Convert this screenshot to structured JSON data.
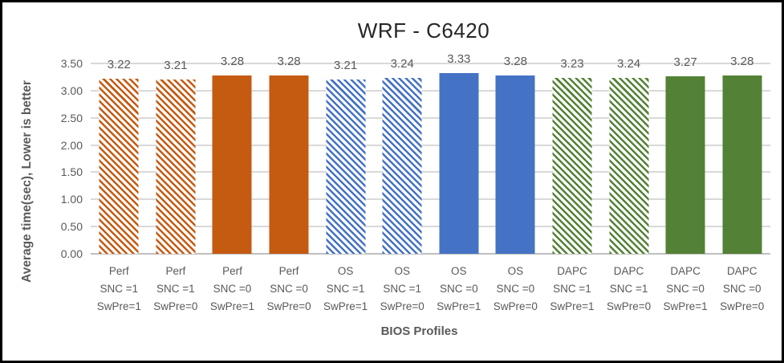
{
  "chart_data": {
    "type": "bar",
    "title": "WRF - C6420",
    "xlabel": "BIOS Profiles",
    "ylabel": "Average time(sec), Lower is better",
    "ylim": [
      0,
      3.5
    ],
    "grid": true,
    "legend_position": "none",
    "yticks": [
      {
        "v": 3.5,
        "label": "3.50"
      },
      {
        "v": 3.0,
        "label": "3.00"
      },
      {
        "v": 2.5,
        "label": "2.50"
      },
      {
        "v": 2.0,
        "label": "2.00"
      },
      {
        "v": 1.5,
        "label": "1.50"
      },
      {
        "v": 1.0,
        "label": "1.00"
      },
      {
        "v": 0.5,
        "label": "0.50"
      },
      {
        "v": 0.0,
        "label": "0.00"
      }
    ],
    "categories": [
      [
        "Perf",
        "SNC =1",
        "SwPre=1"
      ],
      [
        "Perf",
        "SNC =1",
        "SwPre=0"
      ],
      [
        "Perf",
        "SNC =0",
        "SwPre=1"
      ],
      [
        "Perf",
        "SNC =0",
        "SwPre=0"
      ],
      [
        "OS",
        "SNC =1",
        "SwPre=1"
      ],
      [
        "OS",
        "SNC =1",
        "SwPre=0"
      ],
      [
        "OS",
        "SNC =0",
        "SwPre=1"
      ],
      [
        "OS",
        "SNC =0",
        "SwPre=0"
      ],
      [
        "DAPC",
        "SNC =1",
        "SwPre=1"
      ],
      [
        "DAPC",
        "SNC =1",
        "SwPre=0"
      ],
      [
        "DAPC",
        "SNC =0",
        "SwPre=1"
      ],
      [
        "DAPC",
        "SNC =0",
        "SwPre=0"
      ]
    ],
    "values": [
      3.22,
      3.21,
      3.28,
      3.28,
      3.21,
      3.24,
      3.33,
      3.28,
      3.23,
      3.24,
      3.27,
      3.28
    ],
    "value_labels": [
      "3.22",
      "3.21",
      "3.28",
      "3.28",
      "3.21",
      "3.24",
      "3.33",
      "3.28",
      "3.23",
      "3.24",
      "3.27",
      "3.28"
    ],
    "styles": [
      {
        "color": "#C55A11",
        "fill": "hatch"
      },
      {
        "color": "#C55A11",
        "fill": "hatch"
      },
      {
        "color": "#C55A11",
        "fill": "solid"
      },
      {
        "color": "#C55A11",
        "fill": "solid"
      },
      {
        "color": "#4472C4",
        "fill": "hatch"
      },
      {
        "color": "#4472C4",
        "fill": "hatch"
      },
      {
        "color": "#4472C4",
        "fill": "solid"
      },
      {
        "color": "#4472C4",
        "fill": "solid"
      },
      {
        "color": "#538135",
        "fill": "hatch"
      },
      {
        "color": "#538135",
        "fill": "hatch"
      },
      {
        "color": "#538135",
        "fill": "solid"
      },
      {
        "color": "#538135",
        "fill": "solid"
      }
    ]
  },
  "colors": {
    "orange": "#C55A11",
    "blue": "#4472C4",
    "green": "#538135",
    "gridline": "#D9D9D9",
    "axis_line": "#BFBFBF",
    "label_text": "#595959",
    "title_text": "#262626",
    "frame_border": "#000000",
    "background": "#FFFFFF"
  }
}
